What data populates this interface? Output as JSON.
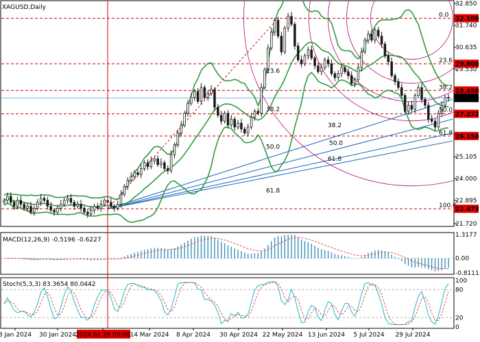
{
  "window": {
    "symbol_title": "XAGUSD,Daily",
    "macd_label": "MACD(12,26,9) -0.5196 -0.6227",
    "stoch_label": "Stoch(5,3,3) 83.3654 80.0442"
  },
  "colors": {
    "candle": "#1a1a1a",
    "bollinger": "#2e9a3e",
    "fib_arc": "#b5007e",
    "fib_fan": "#1565c0",
    "level_line": "#cc0000",
    "price_tag": "#e00000",
    "current_tag": "#000000",
    "macd_hist": "#3a8fb7",
    "macd_signal": "#e05050",
    "stoch_main": "#1fb7c6",
    "stoch_signal": "#e05050"
  },
  "chart_data": [
    {
      "type": "candlestick",
      "name": "XAGUSD Daily",
      "x_dates": [
        "8 Jan 2024",
        "30 Jan 2024",
        "2024.02.28 00:00",
        "14 Mar 2024",
        "8 Apr 2024",
        "30 Apr 2024",
        "22 May 2024",
        "13 Jun 2024",
        "5 Jul 2024",
        "29 Jul 2024"
      ],
      "highlighted_date": "2024.02.28 00:00",
      "y_ticks": [
        "32.850",
        "31.740",
        "30.635",
        "29.530",
        "28.430",
        "27.320",
        "26.215",
        "25.105",
        "24.000",
        "22.895",
        "21.720"
      ],
      "ylim": [
        21.72,
        32.85
      ],
      "price_tags": [
        {
          "label": "32.100",
          "value": 32.1,
          "style": "level"
        },
        {
          "label": "29.800",
          "value": 29.8,
          "style": "level"
        },
        {
          "label": "28.450",
          "value": 28.45,
          "style": "level"
        },
        {
          "label": "28.070",
          "value": 28.07,
          "style": "current"
        },
        {
          "label": "27.272",
          "value": 27.272,
          "style": "level"
        },
        {
          "label": "26.150",
          "value": 26.15,
          "style": "level"
        },
        {
          "label": "22.473",
          "value": 22.473,
          "style": "level"
        }
      ],
      "fib_retracement_labels": [
        {
          "label": "0.0",
          "value": 32.1
        },
        {
          "label": "23.6",
          "value": 29.8
        },
        {
          "label": "38.2",
          "value": 28.45
        },
        {
          "label": "50.0",
          "value": 27.3
        },
        {
          "label": "61.8",
          "value": 26.15
        },
        {
          "label": "100.0",
          "value": 22.473
        }
      ],
      "fib_arc_labels": [
        "23.6",
        "38.2",
        "50.0",
        "61.8"
      ],
      "fib_fan_labels": [
        "38.2",
        "50.0",
        "61.8"
      ],
      "closes": [
        22.9,
        23.1,
        22.8,
        22.6,
        22.9,
        22.7,
        22.5,
        22.6,
        22.3,
        22.5,
        22.8,
        23.0,
        22.9,
        22.6,
        22.4,
        22.3,
        22.5,
        22.7,
        22.9,
        23.0,
        22.8,
        22.6,
        22.7,
        22.5,
        22.3,
        22.2,
        22.4,
        22.6,
        22.5,
        22.7,
        22.9,
        22.8,
        22.6,
        22.5,
        22.7,
        23.2,
        23.6,
        23.9,
        24.1,
        24.3,
        24.2,
        24.5,
        24.8,
        24.6,
        24.9,
        25.0,
        24.7,
        24.8,
        24.5,
        24.4,
        25.2,
        25.7,
        26.3,
        26.7,
        27.3,
        27.8,
        28.1,
        28.4,
        27.9,
        28.6,
        28.1,
        28.3,
        28.5,
        27.6,
        27.2,
        26.9,
        27.3,
        26.7,
        27.0,
        26.6,
        26.8,
        26.5,
        26.3,
        26.6,
        27.1,
        27.4,
        27.3,
        28.6,
        29.5,
        30.6,
        31.4,
        32.0,
        31.2,
        30.4,
        31.6,
        32.2,
        31.8,
        30.7,
        30.0,
        29.8,
        30.2,
        30.5,
        30.1,
        29.7,
        29.4,
        29.6,
        30.0,
        29.8,
        29.3,
        29.1,
        29.3,
        29.6,
        29.4,
        29.2,
        28.8,
        29.0,
        29.6,
        30.4,
        31.0,
        31.3,
        31.0,
        31.5,
        31.2,
        30.8,
        30.2,
        29.9,
        29.2,
        28.9,
        28.6,
        28.2,
        27.4,
        27.7,
        27.5,
        28.2,
        28.6,
        28.0,
        27.7,
        27.0,
        26.9,
        26.6,
        27.3,
        27.7,
        28.1,
        28.07
      ]
    },
    {
      "type": "bar",
      "name": "MACD(12,26,9)",
      "macd_value": -0.5196,
      "signal_value": -0.6227,
      "y_ticks": [
        "1.3177",
        "0.00",
        "-0.8111"
      ],
      "ylim": [
        -0.8111,
        1.3177
      ]
    },
    {
      "type": "line",
      "name": "Stoch(5,3,3)",
      "main_value": 83.3654,
      "signal_value": 80.0442,
      "y_ticks": [
        "100",
        "80",
        "20",
        "0"
      ],
      "levels": [
        80,
        20
      ],
      "ylim": [
        0,
        100
      ]
    }
  ]
}
